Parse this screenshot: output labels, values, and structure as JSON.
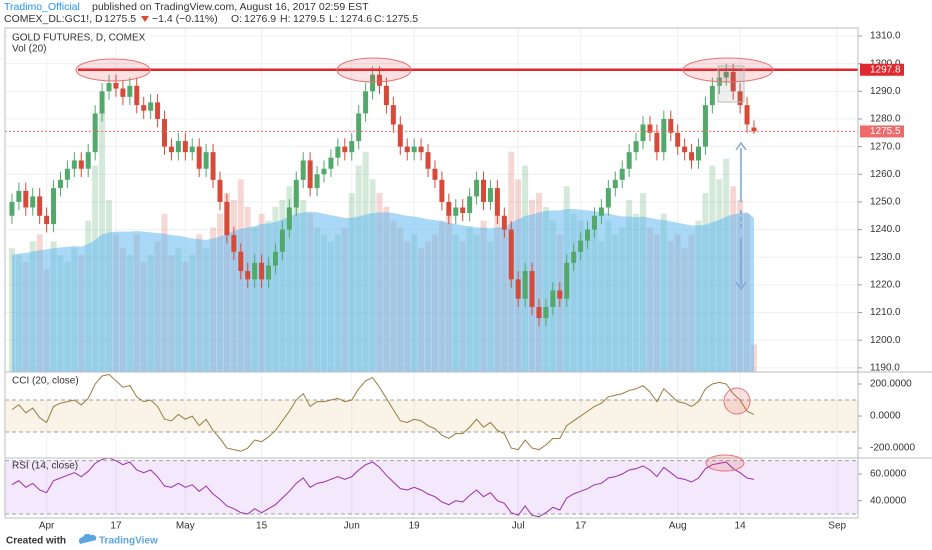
{
  "header": {
    "author": "Tradimo_Official",
    "published": "published on TradingView.com, August 16, 2017 02:59 EST",
    "symbol": "COMEX_DL:GC1!, D",
    "last": "1275.5",
    "change": "−1.4 (−0.11%)",
    "o_label": "O:",
    "o": "1276.9",
    "h_label": "H:",
    "h": "1279.5",
    "l_label": "L:",
    "l": "1274.6",
    "c_label": "C:",
    "c": "1275.5"
  },
  "chart_data": [
    {
      "type": "candlestick",
      "title": "GOLD FUTURES, D, COMEX",
      "up_color": "#53a86b",
      "down_color": "#d64a3a",
      "open": [
        1245,
        1250,
        1254,
        1248,
        1252,
        1245,
        1242,
        1255,
        1258,
        1262,
        1265,
        1262,
        1268,
        1282,
        1290,
        1293,
        1291,
        1288,
        1292,
        1285,
        1283,
        1286,
        1280,
        1270,
        1268,
        1272,
        1268,
        1270,
        1262,
        1268,
        1258,
        1250,
        1238,
        1232,
        1225,
        1222,
        1228,
        1222,
        1227,
        1232,
        1240,
        1248,
        1258,
        1265,
        1255,
        1260,
        1262,
        1266,
        1270,
        1268,
        1272,
        1282,
        1290,
        1296,
        1292,
        1285,
        1278,
        1270,
        1268,
        1270,
        1268,
        1262,
        1258,
        1250,
        1245,
        1248,
        1246,
        1252,
        1258,
        1250,
        1255,
        1245,
        1240,
        1222,
        1215,
        1225,
        1212,
        1208,
        1212,
        1218,
        1215,
        1228,
        1232,
        1236,
        1240,
        1245,
        1248,
        1255,
        1258,
        1262,
        1268,
        1272,
        1278,
        1275,
        1268,
        1280,
        1275,
        1270,
        1268,
        1265,
        1270,
        1285,
        1292,
        1295,
        1297,
        1290,
        1285,
        1276.9
      ],
      "high": [
        1253,
        1257,
        1257,
        1255,
        1255,
        1248,
        1258,
        1261,
        1265,
        1268,
        1268,
        1271,
        1285,
        1293,
        1296,
        1296,
        1294,
        1295,
        1295,
        1288,
        1289,
        1289,
        1283,
        1273,
        1275,
        1275,
        1273,
        1273,
        1271,
        1271,
        1261,
        1253,
        1241,
        1235,
        1228,
        1231,
        1231,
        1230,
        1235,
        1243,
        1251,
        1261,
        1268,
        1268,
        1263,
        1265,
        1269,
        1273,
        1273,
        1275,
        1285,
        1293,
        1299,
        1299,
        1295,
        1288,
        1281,
        1273,
        1273,
        1273,
        1271,
        1265,
        1261,
        1253,
        1251,
        1251,
        1255,
        1261,
        1261,
        1258,
        1258,
        1248,
        1243,
        1225,
        1228,
        1228,
        1215,
        1215,
        1221,
        1221,
        1231,
        1235,
        1239,
        1243,
        1248,
        1251,
        1258,
        1261,
        1265,
        1271,
        1275,
        1281,
        1281,
        1278,
        1283,
        1283,
        1278,
        1273,
        1271,
        1273,
        1288,
        1295,
        1298,
        1300,
        1300,
        1293,
        1288,
        1279.5
      ],
      "low": [
        1242,
        1247,
        1245,
        1245,
        1242,
        1239,
        1239,
        1252,
        1255,
        1259,
        1259,
        1259,
        1265,
        1279,
        1287,
        1288,
        1285,
        1285,
        1282,
        1280,
        1280,
        1277,
        1267,
        1265,
        1265,
        1265,
        1265,
        1259,
        1259,
        1255,
        1247,
        1235,
        1229,
        1222,
        1219,
        1219,
        1219,
        1219,
        1224,
        1229,
        1237,
        1245,
        1255,
        1252,
        1252,
        1257,
        1259,
        1263,
        1265,
        1265,
        1269,
        1279,
        1287,
        1289,
        1282,
        1275,
        1267,
        1265,
        1265,
        1265,
        1259,
        1255,
        1247,
        1242,
        1242,
        1243,
        1243,
        1249,
        1247,
        1247,
        1242,
        1237,
        1219,
        1212,
        1212,
        1209,
        1205,
        1205,
        1209,
        1212,
        1212,
        1225,
        1229,
        1233,
        1237,
        1242,
        1245,
        1252,
        1255,
        1259,
        1265,
        1269,
        1272,
        1265,
        1265,
        1272,
        1267,
        1265,
        1262,
        1262,
        1267,
        1282,
        1289,
        1292,
        1287,
        1282,
        1275,
        1274.6
      ],
      "close": [
        1250,
        1254,
        1248,
        1252,
        1245,
        1242,
        1255,
        1258,
        1262,
        1265,
        1262,
        1268,
        1282,
        1290,
        1293,
        1291,
        1288,
        1292,
        1285,
        1283,
        1286,
        1280,
        1270,
        1268,
        1272,
        1268,
        1270,
        1262,
        1268,
        1258,
        1250,
        1238,
        1232,
        1225,
        1222,
        1228,
        1222,
        1227,
        1232,
        1240,
        1248,
        1258,
        1265,
        1255,
        1260,
        1262,
        1266,
        1270,
        1268,
        1272,
        1282,
        1290,
        1296,
        1292,
        1285,
        1278,
        1270,
        1268,
        1270,
        1268,
        1262,
        1258,
        1250,
        1245,
        1248,
        1246,
        1252,
        1258,
        1250,
        1255,
        1245,
        1240,
        1222,
        1215,
        1225,
        1212,
        1208,
        1212,
        1218,
        1215,
        1228,
        1232,
        1236,
        1240,
        1245,
        1248,
        1255,
        1258,
        1262,
        1268,
        1272,
        1278,
        1275,
        1268,
        1280,
        1275,
        1270,
        1268,
        1265,
        1270,
        1285,
        1292,
        1295,
        1297,
        1290,
        1285,
        1278,
        1275.5
      ],
      "xlim": [
        -1,
        122
      ],
      "xticks": [
        {
          "value": 5,
          "label": "Apr"
        },
        {
          "value": 15,
          "label": "17"
        },
        {
          "value": 25,
          "label": "May"
        },
        {
          "value": 36,
          "label": "15"
        },
        {
          "value": 49,
          "label": "Jun"
        },
        {
          "value": 58,
          "label": "19"
        },
        {
          "value": 73,
          "label": "Jul"
        },
        {
          "value": 82,
          "label": "17"
        },
        {
          "value": 96,
          "label": "Aug"
        },
        {
          "value": 105,
          "label": "14"
        },
        {
          "value": 119,
          "label": "Sep"
        }
      ],
      "ylim": [
        1188.5,
        1312.9
      ],
      "yticks": [
        {
          "value": 1190,
          "label": "1190.0"
        },
        {
          "value": 1200,
          "label": "1200.0"
        },
        {
          "value": 1210,
          "label": "1210.0"
        },
        {
          "value": 1220,
          "label": "1220.0"
        },
        {
          "value": 1230,
          "label": "1230.0"
        },
        {
          "value": 1240,
          "label": "1240.0"
        },
        {
          "value": 1250,
          "label": "1250.0"
        },
        {
          "value": 1260,
          "label": "1260.0"
        },
        {
          "value": 1270,
          "label": "1270.0"
        },
        {
          "value": 1280,
          "label": "1280.0"
        },
        {
          "value": 1290,
          "label": "1290.0"
        },
        {
          "value": 1300,
          "label": "1300.0"
        },
        {
          "value": 1310,
          "label": "1310.0"
        }
      ],
      "grid": true,
      "resistance": 1297.8,
      "resistance_color": "#e0282e",
      "last_price": 1275.5,
      "last_color": "#ef6b6b",
      "volume": {
        "title": "Vol (20)",
        "ylim": [
          0,
          500
        ],
        "up_color": "rgba(83,168,107,0.25)",
        "down_color": "rgba(214,74,58,0.22)",
        "ma_color": "rgba(100,185,240,0.55)",
        "values": [
          180,
          170,
          160,
          190,
          200,
          150,
          190,
          170,
          160,
          180,
          170,
          220,
          300,
          380,
          250,
          200,
          180,
          170,
          200,
          160,
          170,
          190,
          230,
          170,
          180,
          160,
          170,
          200,
          180,
          210,
          230,
          260,
          250,
          280,
          240,
          210,
          230,
          220,
          240,
          250,
          270,
          260,
          250,
          230,
          210,
          200,
          190,
          200,
          210,
          260,
          300,
          320,
          280,
          260,
          240,
          220,
          210,
          190,
          200,
          180,
          190,
          200,
          220,
          230,
          200,
          190,
          210,
          200,
          220,
          190,
          230,
          210,
          320,
          280,
          300,
          250,
          260,
          240,
          220,
          200,
          270,
          230,
          220,
          200,
          210,
          190,
          220,
          200,
          210,
          250,
          230,
          260,
          210,
          200,
          230,
          190,
          200,
          180,
          200,
          220,
          260,
          300,
          280,
          310,
          270,
          250,
          230,
          40
        ],
        "ma": [
          170,
          172,
          173,
          175,
          177,
          178,
          180,
          181,
          182,
          183,
          182,
          186,
          192,
          200,
          203,
          204,
          204,
          204,
          205,
          204,
          203,
          202,
          201,
          199,
          198,
          196,
          194,
          193,
          192,
          194,
          197,
          201,
          205,
          208,
          210,
          212,
          215,
          216,
          218,
          222,
          226,
          230,
          232,
          233,
          232,
          230,
          228,
          226,
          224,
          224,
          226,
          229,
          231,
          232,
          232,
          231,
          229,
          227,
          226,
          224,
          222,
          221,
          219,
          217,
          215,
          213,
          212,
          210,
          210,
          209,
          210,
          211,
          217,
          222,
          227,
          229,
          232,
          234,
          235,
          235,
          237,
          237,
          236,
          235,
          234,
          232,
          230,
          228,
          226,
          226,
          225,
          226,
          224,
          222,
          221,
          219,
          217,
          215,
          213,
          213,
          214,
          218,
          221,
          226,
          229,
          231,
          232,
          224
        ]
      }
    },
    {
      "type": "line",
      "title": "CCI (20, close)",
      "color": "#9a7b3f",
      "band_color": "rgba(230,200,150,0.22)",
      "bands": [
        100,
        -100
      ],
      "ylim": [
        -262,
        275
      ],
      "yticks": [
        {
          "value": 200,
          "label": "200.0000"
        },
        {
          "value": 0,
          "label": "0.0000"
        },
        {
          "value": -200,
          "label": "-200.0000"
        }
      ],
      "values": [
        40,
        70,
        20,
        50,
        -10,
        -40,
        60,
        80,
        90,
        100,
        70,
        110,
        200,
        250,
        260,
        220,
        180,
        190,
        120,
        90,
        100,
        60,
        -20,
        -30,
        10,
        -20,
        0,
        -60,
        -20,
        -90,
        -140,
        -200,
        -210,
        -220,
        -200,
        -150,
        -160,
        -130,
        -90,
        -30,
        30,
        100,
        140,
        60,
        90,
        90,
        100,
        110,
        90,
        100,
        170,
        220,
        240,
        180,
        110,
        40,
        -30,
        -40,
        -20,
        -30,
        -60,
        -80,
        -120,
        -140,
        -110,
        -110,
        -70,
        -20,
        -70,
        -40,
        -90,
        -110,
        -200,
        -210,
        -150,
        -200,
        -210,
        -180,
        -140,
        -140,
        -60,
        -30,
        0,
        30,
        60,
        80,
        120,
        130,
        140,
        160,
        170,
        190,
        150,
        90,
        170,
        130,
        90,
        80,
        60,
        90,
        170,
        200,
        210,
        200,
        140,
        100,
        30,
        10
      ]
    },
    {
      "type": "line",
      "title": "RSI (14, close)",
      "color": "#9c2fa8",
      "band_color": "rgba(200,150,240,0.22)",
      "bands": [
        70,
        30
      ],
      "ylim": [
        27,
        72
      ],
      "yticks": [
        {
          "value": 60,
          "label": "60.0000"
        },
        {
          "value": 40,
          "label": "40.0000"
        }
      ],
      "values": [
        52,
        55,
        50,
        53,
        48,
        46,
        55,
        57,
        59,
        61,
        58,
        62,
        68,
        71,
        72,
        70,
        67,
        69,
        63,
        61,
        63,
        58,
        51,
        50,
        53,
        50,
        52,
        47,
        51,
        45,
        41,
        36,
        34,
        31,
        30,
        34,
        31,
        34,
        37,
        42,
        47,
        53,
        57,
        50,
        53,
        54,
        56,
        58,
        56,
        58,
        63,
        67,
        69,
        65,
        59,
        54,
        49,
        48,
        50,
        48,
        45,
        43,
        39,
        37,
        40,
        39,
        44,
        48,
        43,
        46,
        40,
        38,
        31,
        29,
        36,
        29,
        28,
        31,
        35,
        33,
        42,
        45,
        47,
        49,
        52,
        53,
        57,
        58,
        60,
        63,
        64,
        66,
        63,
        58,
        65,
        61,
        57,
        56,
        54,
        57,
        64,
        67,
        68,
        69,
        64,
        61,
        57,
        56
      ]
    }
  ],
  "footer": {
    "created": "Created with",
    "brand": "TradingView"
  }
}
